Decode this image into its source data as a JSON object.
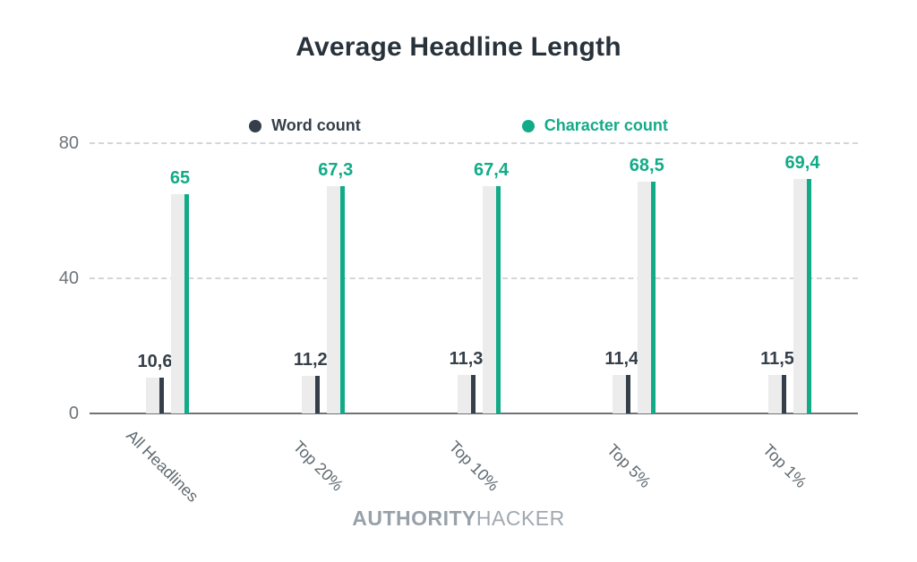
{
  "title": "Average Headline Length",
  "footer": {
    "brand_bold": "AUTHORITY",
    "brand_light": "HACKER"
  },
  "colors": {
    "word": "#353f49",
    "character": "#12ab88",
    "track": "#ececec",
    "title_text": "#28323b",
    "axis_text": "#6d7478",
    "category_text": "#5f6a71",
    "gridline": "#d3d6d8",
    "brand_text": "#9aa3ab"
  },
  "chart_data": {
    "type": "bar",
    "title": "Average Headline Length",
    "categories": [
      "All Headlines",
      "Top 20%",
      "Top 10%",
      "Top 5%",
      "Top 1%"
    ],
    "series": [
      {
        "name": "Word count",
        "color": "#353f49",
        "values": [
          10.6,
          11.2,
          11.3,
          11.4,
          11.5
        ],
        "labels": [
          "10,6",
          "11,2",
          "11,3",
          "11,4",
          "11,5"
        ]
      },
      {
        "name": "Character count",
        "color": "#12ab88",
        "values": [
          65,
          67.3,
          67.4,
          68.5,
          69.4
        ],
        "labels": [
          "65",
          "67,3",
          "67,4",
          "68,5",
          "69,4"
        ]
      }
    ],
    "y_axis": {
      "ticks": [
        0,
        40,
        80
      ],
      "max": 80,
      "label": ""
    },
    "x_label": "",
    "y_label": "",
    "grid": "horizontal dashed at 40 and 80",
    "legend_position": "top",
    "decimal_separator": ","
  }
}
